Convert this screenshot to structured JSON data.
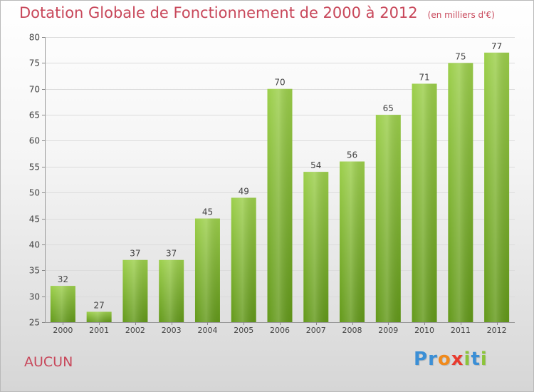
{
  "title": "Dotation Globale de Fonctionnement de 2000 à 2012",
  "unit": "(en milliers d'€)",
  "commune": "AUCUN",
  "logo": {
    "letters": [
      {
        "ch": "P",
        "color": "#3b8fd6"
      },
      {
        "ch": "r",
        "color": "#3b8fd6"
      },
      {
        "ch": "o",
        "color": "#f08a1c"
      },
      {
        "ch": "x",
        "color": "#e83a2e"
      },
      {
        "ch": "i",
        "color": "#8cc43a"
      },
      {
        "ch": "t",
        "color": "#3b8fd6"
      },
      {
        "ch": "i",
        "color": "#8cc43a"
      }
    ]
  },
  "chart_data": {
    "type": "bar",
    "categories": [
      "2000",
      "2001",
      "2002",
      "2003",
      "2004",
      "2005",
      "2006",
      "2007",
      "2008",
      "2009",
      "2010",
      "2011",
      "2012"
    ],
    "values": [
      32,
      27,
      37,
      37,
      45,
      49,
      70,
      54,
      56,
      65,
      71,
      75,
      77
    ],
    "title": "Dotation Globale de Fonctionnement de 2000 à 2012",
    "subtitle": "(en milliers d'€)",
    "xlabel": "",
    "ylabel": "",
    "ylim": [
      25,
      80
    ],
    "yticks": [
      25,
      30,
      35,
      40,
      45,
      50,
      55,
      60,
      65,
      70,
      75,
      80
    ],
    "grid": true,
    "bar_color_top": "#9ccf4b",
    "bar_color_bottom": "#63991a"
  }
}
